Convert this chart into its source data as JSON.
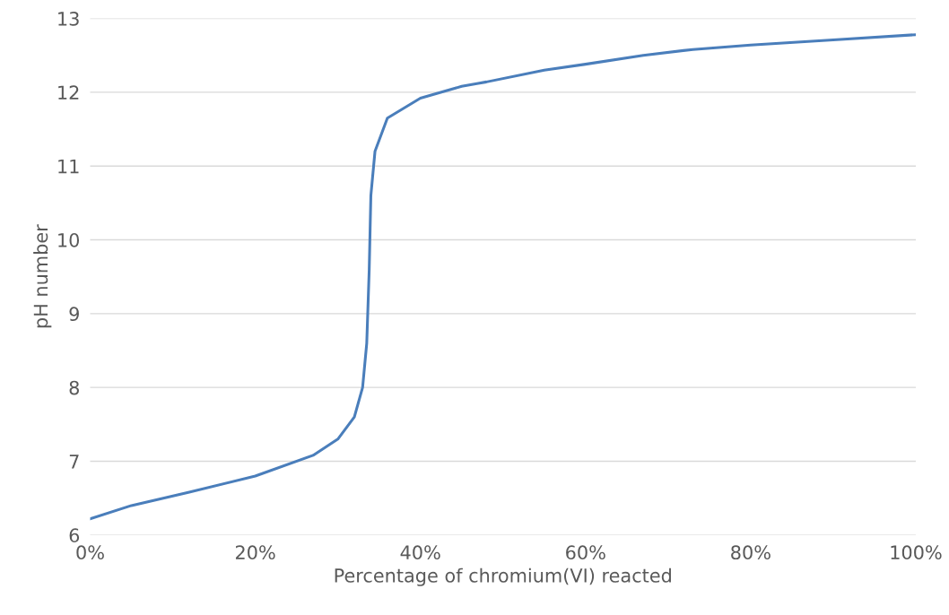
{
  "chart_data": {
    "type": "line",
    "xlabel": "Percentage of chromium(VI) reacted",
    "ylabel": "pH number",
    "x": [
      0,
      5,
      12,
      20,
      27,
      30,
      32,
      33,
      33.5,
      33.8,
      34,
      34.5,
      36,
      40,
      45,
      47,
      48,
      55,
      60,
      67,
      73,
      80,
      90,
      100
    ],
    "series": [
      {
        "color": "#4a7ebb",
        "values": [
          6.22,
          6.4,
          6.58,
          6.8,
          7.08,
          7.3,
          7.6,
          8.0,
          8.6,
          9.6,
          10.6,
          11.2,
          11.65,
          11.92,
          12.08,
          12.12,
          12.14,
          12.3,
          12.38,
          12.5,
          12.58,
          12.64,
          12.71,
          12.78
        ]
      }
    ],
    "xlim": [
      0,
      100
    ],
    "xticks": [
      {
        "value": 0,
        "label": "0%"
      },
      {
        "value": 20,
        "label": "20%"
      },
      {
        "value": 40,
        "label": "40%"
      },
      {
        "value": 60,
        "label": "60%"
      },
      {
        "value": 80,
        "label": "80%"
      },
      {
        "value": 100,
        "label": "100%"
      }
    ],
    "ylim": [
      6,
      13
    ],
    "yticks": [
      6,
      7,
      8,
      9,
      10,
      11,
      12,
      13
    ],
    "grid": "y",
    "marker": "none",
    "line_style": "solid"
  }
}
